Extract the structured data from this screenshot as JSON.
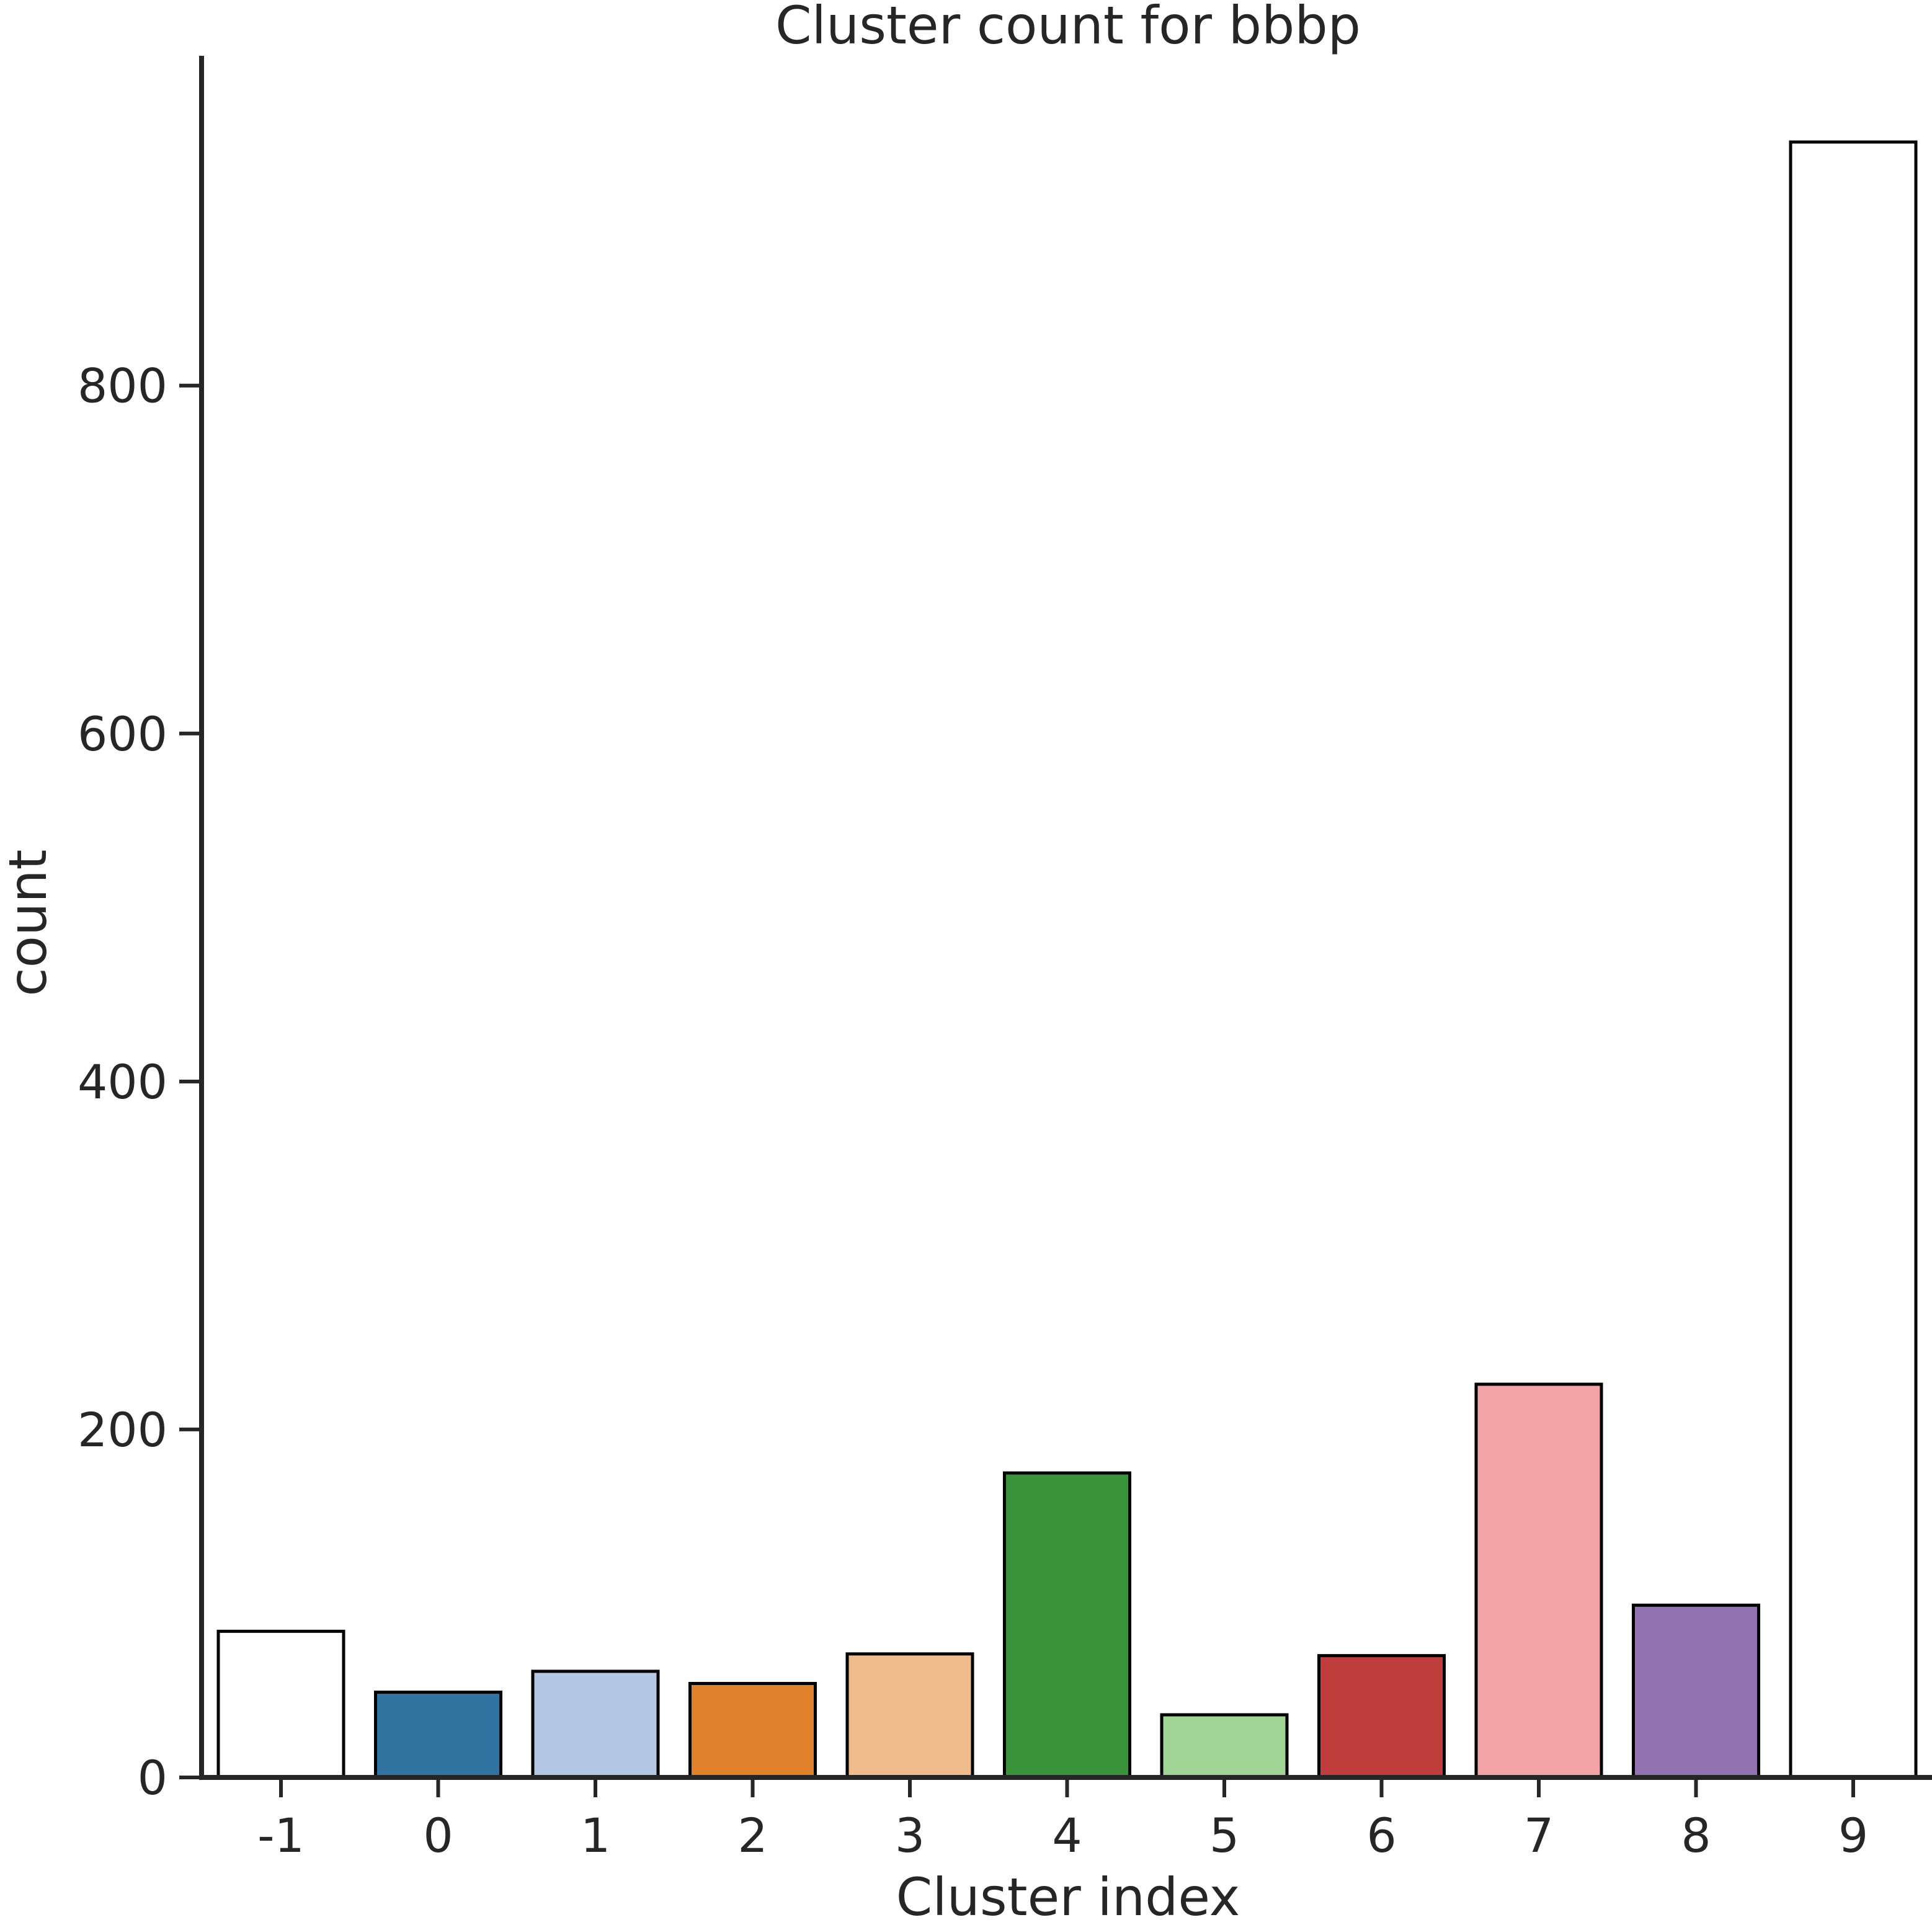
{
  "chart_data": {
    "type": "bar",
    "title": "Cluster count for bbbp",
    "xlabel": "Cluster index",
    "ylabel": "count",
    "categories": [
      "-1",
      "0",
      "1",
      "2",
      "3",
      "4",
      "5",
      "6",
      "7",
      "8",
      "9"
    ],
    "values": [
      84,
      49,
      61,
      54,
      71,
      175,
      36,
      70,
      226,
      99,
      940
    ],
    "colors": [
      "#ffffff",
      "#3274a1",
      "#b4c8e4",
      "#e1812c",
      "#f0bc8c",
      "#3a923a",
      "#a1d596",
      "#c03d3e",
      "#f2a4a6",
      "#9372b2",
      "#ffffff"
    ],
    "edge_color": "#000000",
    "axis_color": "#262626",
    "ylim": [
      0,
      970
    ],
    "yticks": [
      0,
      200,
      400,
      600,
      800
    ],
    "ytick_labels": [
      "0",
      "200",
      "400",
      "600",
      "800"
    ],
    "grid": false,
    "legend": "none"
  }
}
